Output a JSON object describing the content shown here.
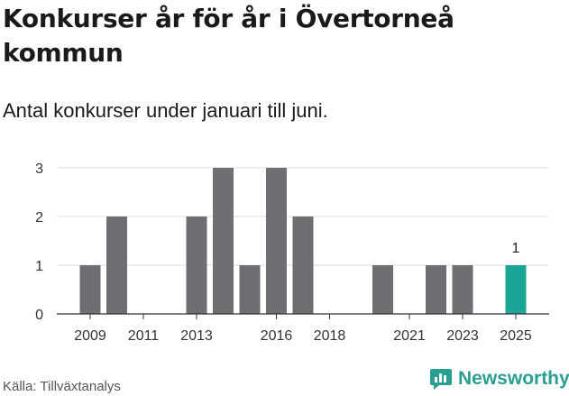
{
  "header": {
    "title": "Konkurser år för år i Övertorneå kommun",
    "subtitle": "Antal konkurser under januari till juni."
  },
  "footer": {
    "source": "Källa: Tillväxtanalys",
    "brand": "Newsworthy"
  },
  "colors": {
    "bar": "#6f6e73",
    "highlight": "#1aa596",
    "grid": "#dddddd",
    "axis": "#333333"
  },
  "icons": {
    "brand_logo": "newsworthy-chart-bubble-icon"
  },
  "chart_data": {
    "type": "bar",
    "title": "Konkurser år för år i Övertorneå kommun",
    "subtitle": "Antal konkurser under januari till juni.",
    "xlabel": "",
    "ylabel": "",
    "categories": [
      "2009",
      "2010",
      "2011",
      "2012",
      "2013",
      "2014",
      "2015",
      "2016",
      "2017",
      "2018",
      "2019",
      "2020",
      "2021",
      "2022",
      "2023",
      "2024",
      "2025"
    ],
    "values": [
      1,
      2,
      0,
      0,
      2,
      3,
      1,
      3,
      2,
      0,
      0,
      1,
      0,
      1,
      1,
      0,
      1
    ],
    "highlight_category": "2025",
    "value_labels": {
      "2025": "1"
    },
    "x_tick_labels": [
      "2009",
      "2011",
      "2013",
      "2016",
      "2018",
      "2021",
      "2023",
      "2025"
    ],
    "y_ticks": [
      0,
      1,
      2,
      3
    ],
    "ylim": [
      0,
      3
    ],
    "grid": true,
    "legend": "none"
  }
}
